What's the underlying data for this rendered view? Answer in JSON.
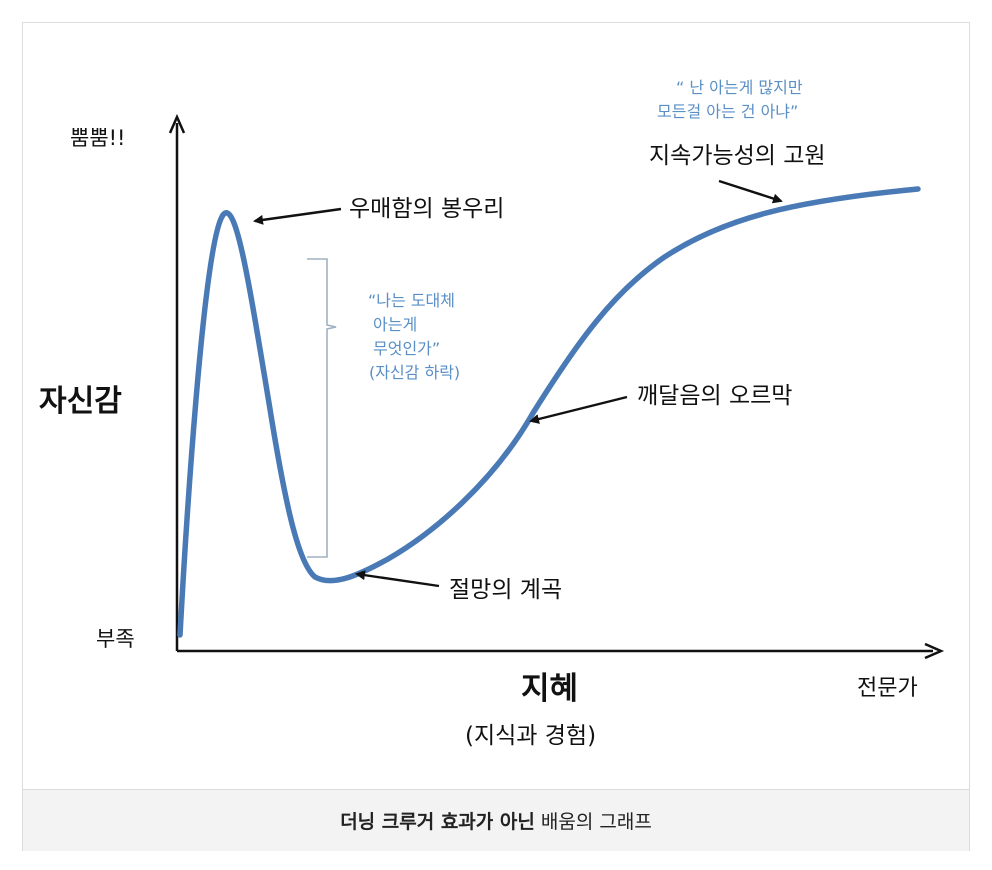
{
  "diagram": {
    "y_axis": {
      "title": "자신감",
      "top_label": "뿜뿜!!",
      "bottom_label": "부족"
    },
    "x_axis": {
      "title": "지혜",
      "subtitle": "(지식과 경험)",
      "end_label": "전문가"
    },
    "annotations": {
      "peak": "우매함의 봉우리",
      "valley": "절망의 계곡",
      "slope": "깨달음의 오르막",
      "plateau": "지속가능성의 고원",
      "quote_fall": [
        "“나는 도대체",
        "아는게",
        "무엇인가”",
        "(자신감 하락)"
      ],
      "quote_top": [
        "“ 난 아는게 많지만",
        "모든걸 아는 건 아냐”"
      ]
    },
    "colors": {
      "curve": "#4a7ab5",
      "quote": "#5a8fc6",
      "axis": "#111111",
      "bracket": "#9fb0c3"
    }
  },
  "caption": {
    "bold": "더닝 크루거 효과가 아닌",
    "normal": "배움의 그래프"
  }
}
